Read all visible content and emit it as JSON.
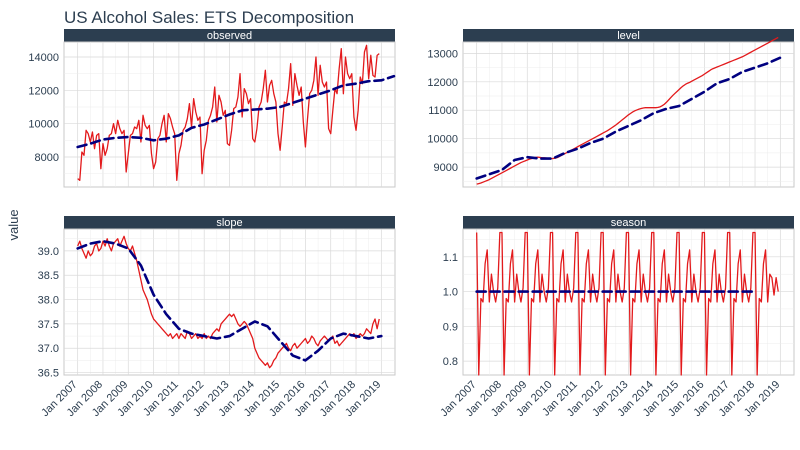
{
  "chart_data": {
    "type": "line",
    "title": "US Alcohol Sales: ETS Decomposition",
    "ylabel": "value",
    "xlabel": "",
    "x_tick_labels": [
      "Jan 2007",
      "Jan 2008",
      "Jan 2009",
      "Jan 2010",
      "Jan 2011",
      "Jan 2012",
      "Jan 2013",
      "Jan 2014",
      "Jan 2015",
      "Jan 2016",
      "Jan 2017",
      "Jan 2018",
      "Jan 2019"
    ],
    "x_range": [
      "2007-01",
      "2019-01"
    ],
    "grid": true,
    "legend": "none",
    "colors": {
      "actual": "#e31a1c",
      "smooth": "#000080",
      "strip_bg": "#2c3e50",
      "grid": "#dddddd",
      "border": "#c8c8c8"
    },
    "panels": [
      {
        "name": "observed",
        "ylim": [
          6200,
          14900
        ],
        "yticks": [
          8000,
          10000,
          12000,
          14000
        ],
        "series": {
          "actual": [
            6700,
            6600,
            8300,
            8100,
            9600,
            9400,
            8900,
            9500,
            8500,
            9300,
            9400,
            7300,
            8800,
            8100,
            8500,
            9300,
            9400,
            10000,
            9400,
            10200,
            9700,
            9400,
            9600,
            7100,
            8200,
            9300,
            9400,
            9800,
            9700,
            10200,
            8900,
            10500,
            9900,
            9700,
            9900,
            8200,
            7300,
            7700,
            9100,
            9300,
            10000,
            10500,
            8900,
            10600,
            10300,
            9800,
            9400,
            6600,
            8200,
            8700,
            9600,
            9800,
            10300,
            11200,
            9800,
            11500,
            10700,
            10200,
            10400,
            7000,
            8400,
            9000,
            10200,
            10500,
            11000,
            12200,
            10100,
            11700,
            11300,
            10500,
            10800,
            8800,
            8700,
            9600,
            10900,
            11000,
            11600,
            13000,
            10400,
            12100,
            11800,
            11200,
            11500,
            9100,
            8900,
            9700,
            11000,
            11300,
            12100,
            13200,
            11300,
            12300,
            12600,
            11800,
            11300,
            9400,
            8400,
            9800,
            11300,
            11200,
            12100,
            13600,
            11100,
            13000,
            12300,
            11700,
            12200,
            10100,
            8600,
            10300,
            11800,
            12000,
            12600,
            14000,
            11700,
            13500,
            12500,
            12200,
            12500,
            9700,
            9400,
            10800,
            12100,
            11800,
            13300,
            14500,
            11800,
            14000,
            13000,
            12700,
            13000,
            10400,
            9600,
            10800,
            12800,
            12400,
            14300,
            14700,
            12700,
            14100,
            12900,
            12800,
            14100,
            14200
          ],
          "smooth": [
            [
              1,
              8600
            ],
            [
              1.5,
              8800
            ],
            [
              2,
              9050
            ],
            [
              2.5,
              9150
            ],
            [
              3,
              9200
            ],
            [
              3.5,
              9150
            ],
            [
              4,
              9000
            ],
            [
              4.5,
              9100
            ],
            [
              5,
              9300
            ],
            [
              5.5,
              9750
            ],
            [
              6,
              9950
            ],
            [
              6.5,
              10250
            ],
            [
              7,
              10550
            ],
            [
              7.5,
              10800
            ],
            [
              8,
              10850
            ],
            [
              8.5,
              10900
            ],
            [
              9,
              11000
            ],
            [
              9.5,
              11250
            ],
            [
              10,
              11500
            ],
            [
              10.5,
              11750
            ],
            [
              11,
              12000
            ],
            [
              11.5,
              12300
            ],
            [
              12,
              12400
            ],
            [
              12.5,
              12550
            ],
            [
              13,
              12600
            ],
            [
              13.5,
              12850
            ]
          ]
        }
      },
      {
        "name": "level",
        "ylim": [
          8300,
          13400
        ],
        "yticks": [
          9000,
          10000,
          11000,
          12000,
          13000
        ],
        "series": {
          "actual": [
            8400,
            8420,
            8440,
            8470,
            8500,
            8530,
            8560,
            8600,
            8640,
            8680,
            8720,
            8760,
            8800,
            8840,
            8880,
            8920,
            8960,
            9000,
            9040,
            9080,
            9120,
            9160,
            9190,
            9220,
            9250,
            9280,
            9300,
            9320,
            9340,
            9350,
            9340,
            9330,
            9330,
            9320,
            9310,
            9300,
            9300,
            9310,
            9330,
            9360,
            9400,
            9440,
            9480,
            9520,
            9560,
            9600,
            9640,
            9680,
            9720,
            9760,
            9800,
            9840,
            9880,
            9920,
            9960,
            10000,
            10040,
            10080,
            10120,
            10160,
            10200,
            10240,
            10280,
            10330,
            10380,
            10430,
            10480,
            10540,
            10600,
            10660,
            10720,
            10780,
            10840,
            10890,
            10940,
            10980,
            11010,
            11040,
            11060,
            11080,
            11090,
            11090,
            11090,
            11090,
            11090,
            11090,
            11100,
            11120,
            11160,
            11210,
            11280,
            11360,
            11440,
            11520,
            11590,
            11660,
            11730,
            11800,
            11860,
            11910,
            11950,
            11980,
            12020,
            12060,
            12100,
            12140,
            12180,
            12220,
            12270,
            12320,
            12370,
            12420,
            12460,
            12490,
            12520,
            12550,
            12580,
            12610,
            12640,
            12670,
            12700,
            12730,
            12760,
            12790,
            12820,
            12850,
            12880,
            12920,
            12960,
            13000,
            13040,
            13080,
            13120,
            13160,
            13200,
            13240,
            13280,
            13320,
            13360,
            13400,
            13440,
            13480,
            13520,
            13560
          ],
          "smooth": [
            [
              1,
              8600
            ],
            [
              2,
              8900
            ],
            [
              2.5,
              9250
            ],
            [
              3,
              9350
            ],
            [
              3.5,
              9300
            ],
            [
              4,
              9300
            ],
            [
              4.5,
              9500
            ],
            [
              5,
              9650
            ],
            [
              5.5,
              9850
            ],
            [
              6,
              10000
            ],
            [
              6.5,
              10250
            ],
            [
              7,
              10450
            ],
            [
              7.5,
              10650
            ],
            [
              8,
              10900
            ],
            [
              8.5,
              11050
            ],
            [
              9,
              11150
            ],
            [
              9.5,
              11400
            ],
            [
              10,
              11650
            ],
            [
              10.5,
              11950
            ],
            [
              11,
              12100
            ],
            [
              11.5,
              12350
            ],
            [
              12,
              12500
            ],
            [
              12.5,
              12650
            ],
            [
              13,
              12850
            ]
          ]
        }
      },
      {
        "name": "slope",
        "ylim": [
          36.45,
          39.45
        ],
        "yticks": [
          36.5,
          37.0,
          37.5,
          38.0,
          38.5,
          39.0
        ],
        "series": {
          "actual": [
            39.1,
            39.2,
            39.05,
            38.95,
            38.85,
            39.0,
            38.9,
            38.95,
            39.1,
            39.15,
            39.0,
            39.05,
            39.2,
            39.1,
            39.25,
            39.1,
            39.0,
            39.15,
            39.2,
            39.25,
            39.1,
            39.2,
            39.3,
            39.15,
            39.05,
            39.0,
            39.1,
            38.95,
            38.8,
            38.6,
            38.4,
            38.2,
            38.1,
            38.0,
            37.85,
            37.7,
            37.6,
            37.55,
            37.5,
            37.45,
            37.4,
            37.35,
            37.3,
            37.25,
            37.3,
            37.2,
            37.25,
            37.3,
            37.2,
            37.3,
            37.25,
            37.2,
            37.35,
            37.3,
            37.2,
            37.25,
            37.3,
            37.2,
            37.25,
            37.2,
            37.3,
            37.2,
            37.25,
            37.2,
            37.3,
            37.35,
            37.4,
            37.35,
            37.5,
            37.55,
            37.6,
            37.65,
            37.7,
            37.65,
            37.7,
            37.6,
            37.5,
            37.45,
            37.5,
            37.55,
            37.5,
            37.4,
            37.3,
            37.2,
            37.0,
            36.9,
            36.8,
            36.75,
            36.7,
            36.65,
            36.7,
            36.6,
            36.65,
            36.75,
            36.8,
            36.9,
            36.95,
            37.0,
            37.05,
            37.1,
            37.0,
            36.95,
            37.05,
            37.1,
            37.0,
            37.05,
            37.1,
            37.15,
            37.2,
            37.1,
            37.15,
            37.25,
            37.2,
            37.1,
            37.05,
            37.15,
            37.2,
            37.25,
            37.2,
            37.15,
            37.2,
            37.25,
            37.1,
            37.15,
            37.05,
            37.1,
            37.15,
            37.2,
            37.25,
            37.3,
            37.25,
            37.3,
            37.2,
            37.25,
            37.3,
            37.25,
            37.3,
            37.4,
            37.35,
            37.3,
            37.5,
            37.6,
            37.4,
            37.6
          ],
          "smooth": [
            [
              1,
              39.05
            ],
            [
              1.5,
              39.15
            ],
            [
              2,
              39.2
            ],
            [
              2.5,
              39.15
            ],
            [
              3,
              39.05
            ],
            [
              3.5,
              38.7
            ],
            [
              4,
              38.1
            ],
            [
              4.5,
              37.7
            ],
            [
              5,
              37.4
            ],
            [
              5.5,
              37.3
            ],
            [
              6,
              37.25
            ],
            [
              6.5,
              37.2
            ],
            [
              7,
              37.25
            ],
            [
              7.5,
              37.4
            ],
            [
              8,
              37.55
            ],
            [
              8.5,
              37.45
            ],
            [
              9,
              37.15
            ],
            [
              9.5,
              36.85
            ],
            [
              10,
              36.75
            ],
            [
              10.5,
              36.95
            ],
            [
              11,
              37.2
            ],
            [
              11.5,
              37.3
            ],
            [
              12,
              37.25
            ],
            [
              12.5,
              37.2
            ],
            [
              13,
              37.25
            ]
          ]
        }
      },
      {
        "name": "season",
        "ylim": [
          0.76,
          1.18
        ],
        "yticks": [
          0.8,
          0.9,
          1.0,
          1.1
        ],
        "series": {
          "actual": [
            1.17,
            0.76,
            0.98,
            0.97,
            1.08,
            1.12,
            0.97,
            1.05,
            1.0,
            0.97,
            1.01,
            1.17,
            1.17,
            0.76,
            0.98,
            0.97,
            1.08,
            1.12,
            0.97,
            1.05,
            1.0,
            0.97,
            1.01,
            1.17,
            1.17,
            0.76,
            0.98,
            0.97,
            1.08,
            1.12,
            0.97,
            1.05,
            1.0,
            0.97,
            1.01,
            1.17,
            1.17,
            0.76,
            0.98,
            0.97,
            1.08,
            1.12,
            0.97,
            1.05,
            1.0,
            0.97,
            1.01,
            1.17,
            1.17,
            0.76,
            0.98,
            0.97,
            1.08,
            1.12,
            0.97,
            1.05,
            1.0,
            0.97,
            1.01,
            1.17,
            1.17,
            0.76,
            0.98,
            0.97,
            1.08,
            1.12,
            0.97,
            1.05,
            1.0,
            0.97,
            1.01,
            1.17,
            1.17,
            0.76,
            0.98,
            0.97,
            1.08,
            1.12,
            0.97,
            1.05,
            1.0,
            0.97,
            1.01,
            1.17,
            1.17,
            0.76,
            0.98,
            0.97,
            1.08,
            1.12,
            0.97,
            1.05,
            1.0,
            0.97,
            1.01,
            1.17,
            1.17,
            0.76,
            0.98,
            0.97,
            1.08,
            1.12,
            0.97,
            1.05,
            1.0,
            0.97,
            1.01,
            1.17,
            1.17,
            0.76,
            0.98,
            0.97,
            1.08,
            1.12,
            0.97,
            1.05,
            1.0,
            0.97,
            1.01,
            1.17,
            1.17,
            0.76,
            0.98,
            0.97,
            1.08,
            1.12,
            0.97,
            1.05,
            1.0,
            0.97,
            1.01,
            1.17,
            1.17,
            0.76,
            0.98,
            0.97,
            1.08,
            1.12,
            0.97,
            1.05,
            1.04,
            0.99,
            1.04,
            1.0
          ],
          "smooth": [
            [
              1,
              1.0
            ],
            [
              12,
              1.0
            ]
          ]
        }
      }
    ]
  }
}
